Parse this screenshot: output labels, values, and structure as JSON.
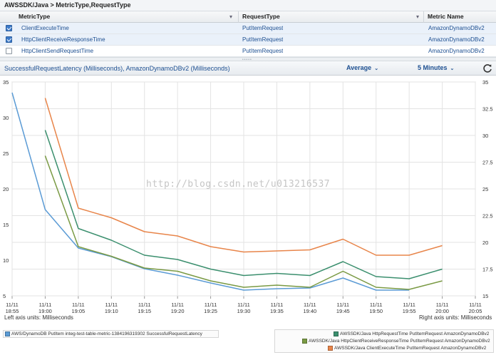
{
  "breadcrumb": "AWSSDK/Java > MetricType,RequestType",
  "table": {
    "headers": [
      "MetricType",
      "RequestType",
      "Metric Name"
    ],
    "rows": [
      {
        "metric_type": "ClientExecuteTime",
        "request_type": "PutItemRequest",
        "metric_name": "AmazonDynamoDBv2",
        "checked": true
      },
      {
        "metric_type": "HttpClientReceiveResponseTime",
        "request_type": "PutItemRequest",
        "metric_name": "AmazonDynamoDBv2",
        "checked": true
      },
      {
        "metric_type": "HttpClientSendRequestTime",
        "request_type": "PutItemRequest",
        "metric_name": "AmazonDynamoDBv2",
        "checked": false
      }
    ]
  },
  "graph": {
    "title": "SuccessfulRequestLatency (Milliseconds), AmazonDynamoDBv2 (Milliseconds)",
    "statistic": "Average",
    "period": "5 Minutes",
    "left_axis_note": "Left axis units: Milliseconds",
    "right_axis_note": "Right axis units: Milliseconds"
  },
  "watermark": "http://blog.csdn.net/u013216537",
  "chart_data": {
    "type": "line",
    "x": [
      "18:55",
      "19:00",
      "19:05",
      "19:10",
      "19:15",
      "19:20",
      "19:25",
      "19:30",
      "19:35",
      "19:40",
      "19:45",
      "19:50",
      "19:55",
      "20:00",
      "20:05"
    ],
    "x_date": "11/11",
    "left_axis": {
      "ylim": [
        5,
        35
      ],
      "ticks": [
        5,
        10,
        15,
        20,
        25,
        30,
        35
      ],
      "label": "Milliseconds"
    },
    "right_axis": {
      "ylim": [
        15,
        35
      ],
      "ticks": [
        15,
        17.5,
        20,
        22.5,
        25,
        27.5,
        30,
        32.5,
        35
      ],
      "label": "Milliseconds"
    },
    "grid": true,
    "legend_left": "bottom-left",
    "legend_right": "bottom-right",
    "series": [
      {
        "name": "AWS/DynamoDB PutItem integ-test-table-metric-1384196319302 SuccessfulRequestLatency",
        "axis": "left",
        "color": "#5b9bd5",
        "values": [
          33.5,
          17.1,
          11.7,
          10.5,
          8.8,
          7.9,
          6.8,
          5.8,
          6.0,
          6.1,
          7.5,
          5.8,
          5.8,
          null,
          null
        ]
      },
      {
        "name": "AWSSDK/Java HttpRequestTime PutItemRequest AmazonDynamoDBv2",
        "axis": "right",
        "color": "#3b8f6e",
        "values": [
          null,
          30.5,
          21.3,
          20.2,
          18.8,
          18.4,
          17.5,
          16.9,
          17.1,
          16.9,
          18.2,
          16.8,
          16.6,
          17.5,
          null
        ]
      },
      {
        "name": "AWSSDK/Java HttpClientReceiveResponseTime PutItemRequest AmazonDynamoDBv2",
        "axis": "right",
        "color": "#7a9a44",
        "values": [
          null,
          28.1,
          19.6,
          18.7,
          17.6,
          17.3,
          16.4,
          15.8,
          16.0,
          15.8,
          17.3,
          15.8,
          15.6,
          16.4,
          null
        ]
      },
      {
        "name": "AWSSDK/Java ClientExecuteTime PutItemRequest AmazonDynamoDBv2",
        "axis": "right",
        "color": "#e8854a",
        "values": [
          null,
          33.5,
          23.2,
          22.3,
          21.0,
          20.6,
          19.6,
          19.1,
          19.2,
          19.3,
          20.3,
          18.8,
          18.8,
          19.7,
          null
        ]
      }
    ]
  },
  "icons": {
    "refresh": "refresh-icon",
    "checkbox": "checkbox-icon"
  }
}
